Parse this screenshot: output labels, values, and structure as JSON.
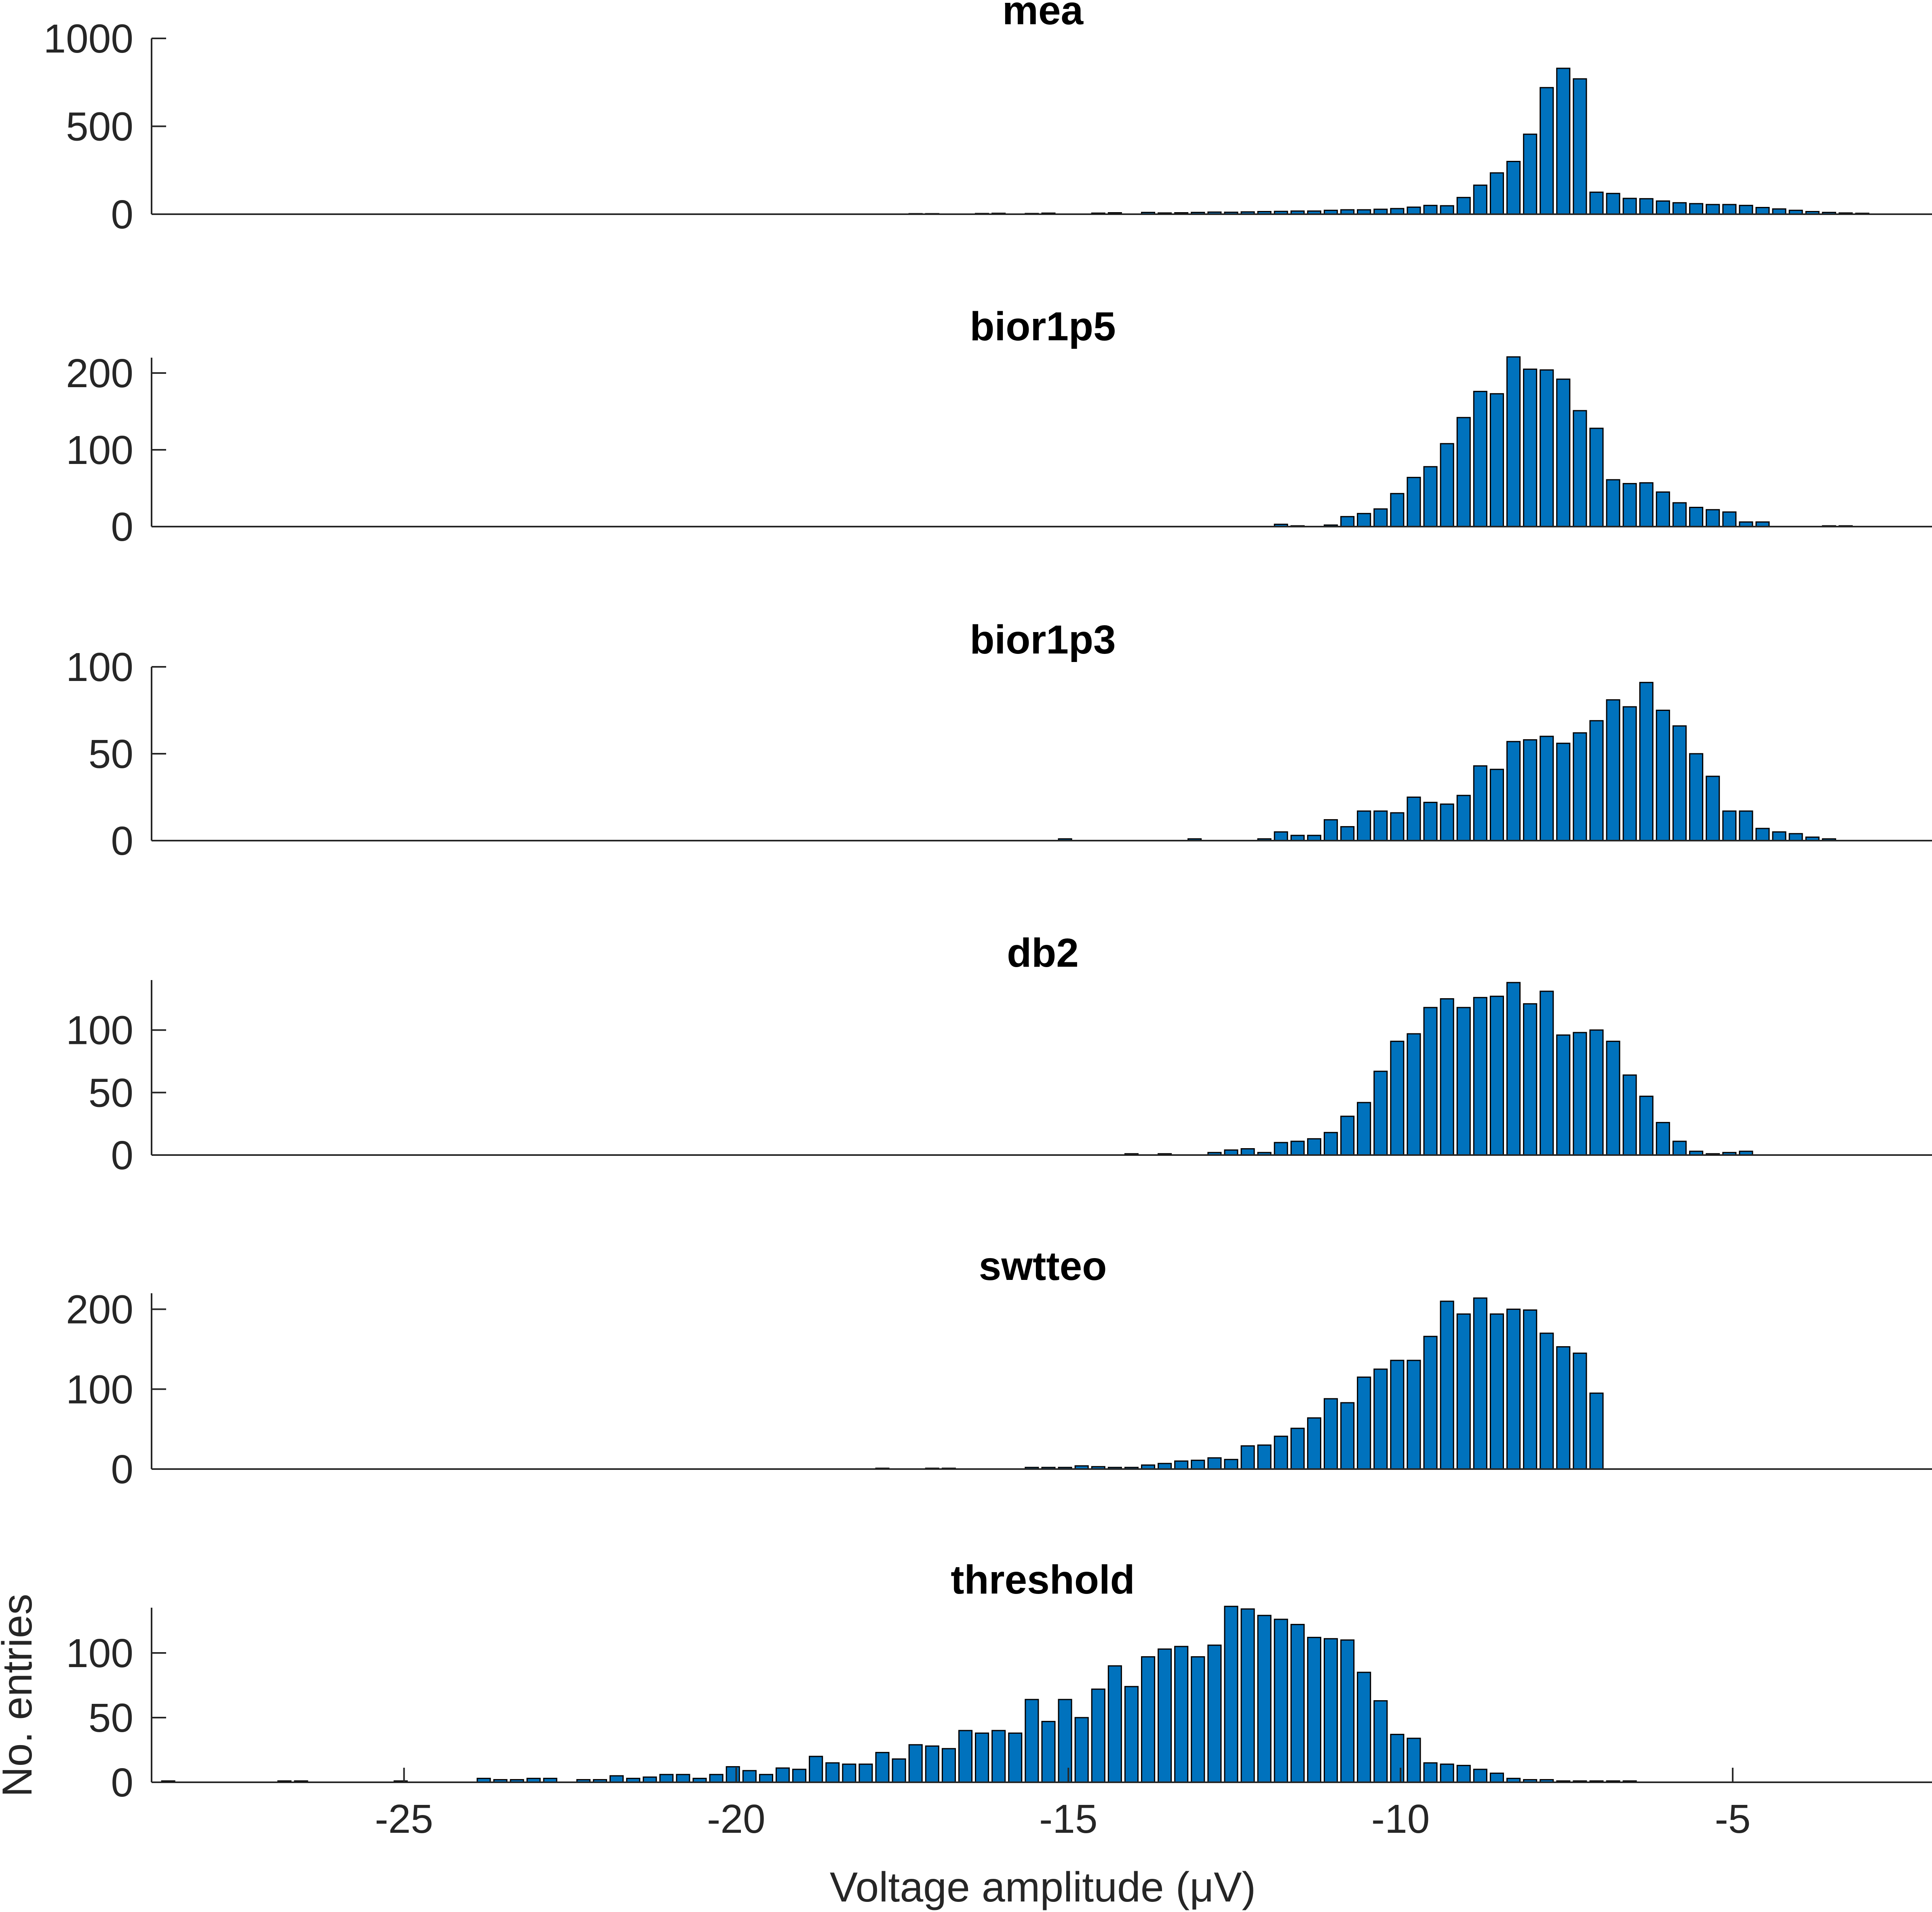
{
  "chart_data": {
    "type": "bar",
    "layout": "six vertically stacked histograms sharing one x axis",
    "xlabel": "Voltage amplitude (μV)",
    "ylabel": "No. entries",
    "xlim": [
      -28.8,
      -2.0
    ],
    "xticks": [
      -25,
      -20,
      -15,
      -10,
      -5
    ],
    "xtick_labels": [
      "-25",
      "-20",
      "-15",
      "-10",
      "-5"
    ],
    "bar_color": "#0072BD",
    "bar_edge_color": "#000000",
    "grid": false,
    "legend": "none",
    "panels": [
      {
        "title": "mea",
        "ylim": [
          0,
          1000
        ],
        "yticks": [
          0,
          500,
          1000
        ],
        "ytick_labels": [
          "0",
          "500",
          "1000"
        ],
        "x": [
          -17.3,
          -17.05,
          -16.3,
          -16.05,
          -15.55,
          -15.3,
          -14.55,
          -14.3,
          -13.8,
          -13.55,
          -13.3,
          -13.05,
          -12.8,
          -12.55,
          -12.3,
          -12.05,
          -11.8,
          -11.55,
          -11.3,
          -11.05,
          -10.8,
          -10.55,
          -10.3,
          -10.05,
          -9.8,
          -9.55,
          -9.3,
          -9.05,
          -8.8,
          -8.55,
          -8.3,
          -8.05,
          -7.8,
          -7.55,
          -7.3,
          -7.05,
          -6.8,
          -6.55,
          -6.3,
          -6.05,
          -5.8,
          -5.55,
          -5.3,
          -5.05,
          -4.8,
          -4.55,
          -4.3,
          -4.05,
          -3.8,
          -3.55,
          -3.3,
          -3.05
        ],
        "values": [
          3,
          3,
          4,
          5,
          4,
          6,
          6,
          8,
          10,
          7,
          8,
          10,
          12,
          11,
          13,
          15,
          16,
          18,
          18,
          22,
          25,
          25,
          28,
          32,
          40,
          50,
          48,
          95,
          165,
          235,
          300,
          455,
          720,
          830,
          770,
          125,
          118,
          90,
          88,
          75,
          65,
          60,
          55,
          55,
          50,
          38,
          30,
          22,
          15,
          10,
          7,
          5
        ]
      },
      {
        "title": "bior1p5",
        "ylim": [
          0,
          220
        ],
        "yticks": [
          0,
          100,
          200
        ],
        "ytick_labels": [
          "0",
          "100",
          "200"
        ],
        "x": [
          -11.8,
          -11.55,
          -11.3,
          -11.05,
          -10.8,
          -10.55,
          -10.3,
          -10.05,
          -9.8,
          -9.55,
          -9.3,
          -9.05,
          -8.8,
          -8.55,
          -8.3,
          -8.05,
          -7.8,
          -7.55,
          -7.3,
          -7.05,
          -6.8,
          -6.55,
          -6.3,
          -6.05,
          -5.8,
          -5.55,
          -5.3,
          -5.05,
          -4.8,
          -4.55,
          -4.3,
          -4.05,
          -3.8,
          -3.55,
          -3.3,
          -3.05
        ],
        "values": [
          3,
          1,
          0,
          2,
          13,
          17,
          23,
          43,
          64,
          78,
          108,
          142,
          176,
          173,
          221,
          205,
          204,
          192,
          151,
          128,
          61,
          56,
          57,
          45,
          31,
          25,
          22,
          19,
          6,
          6,
          0,
          0,
          0,
          1,
          1,
          0
        ]
      },
      {
        "title": "bior1p3",
        "ylim": [
          0,
          100
        ],
        "yticks": [
          0,
          50,
          100
        ],
        "ytick_labels": [
          "0",
          "50",
          "100"
        ],
        "x": [
          -15.05,
          -13.1,
          -12.05,
          -11.8,
          -11.55,
          -11.3,
          -11.05,
          -10.8,
          -10.55,
          -10.3,
          -10.05,
          -9.8,
          -9.55,
          -9.3,
          -9.05,
          -8.8,
          -8.55,
          -8.3,
          -8.05,
          -7.8,
          -7.55,
          -7.3,
          -7.05,
          -6.8,
          -6.55,
          -6.3,
          -6.05,
          -5.8,
          -5.55,
          -5.3,
          -5.05,
          -4.8,
          -4.55,
          -4.3,
          -4.05,
          -3.8,
          -3.55,
          -3.3,
          -3.05
        ],
        "values": [
          1,
          1,
          1,
          5,
          3,
          3,
          12,
          8,
          17,
          17,
          16,
          25,
          22,
          21,
          26,
          43,
          41,
          57,
          58,
          60,
          56,
          62,
          69,
          81,
          77,
          91,
          75,
          66,
          50,
          37,
          17,
          17,
          7,
          5,
          4,
          2,
          1,
          0,
          0
        ]
      },
      {
        "title": "db2",
        "ylim": [
          0,
          140
        ],
        "yticks": [
          0,
          50,
          100
        ],
        "ytick_labels": [
          "0",
          "50",
          "100"
        ],
        "x": [
          -14.05,
          -13.55,
          -13.05,
          -12.8,
          -12.55,
          -12.3,
          -12.05,
          -11.8,
          -11.55,
          -11.3,
          -11.05,
          -10.8,
          -10.55,
          -10.3,
          -10.05,
          -9.8,
          -9.55,
          -9.3,
          -9.05,
          -8.8,
          -8.55,
          -8.3,
          -8.05,
          -7.8,
          -7.55,
          -7.3,
          -7.05,
          -6.8,
          -6.55,
          -6.3,
          -6.05,
          -5.8,
          -5.55,
          -5.3,
          -5.05,
          -4.8,
          -4.55,
          -4.3,
          -4.05
        ],
        "values": [
          1,
          1,
          0,
          2,
          4,
          5,
          2,
          10,
          11,
          13,
          18,
          31,
          42,
          67,
          91,
          97,
          118,
          125,
          118,
          126,
          127,
          138,
          121,
          131,
          96,
          98,
          100,
          91,
          64,
          47,
          26,
          11,
          3,
          1,
          2,
          3,
          0,
          0,
          0
        ]
      },
      {
        "title": "swtteo",
        "ylim": [
          0,
          220
        ],
        "yticks": [
          0,
          100,
          200
        ],
        "ytick_labels": [
          "0",
          "100",
          "200"
        ],
        "x": [
          -17.8,
          -17.05,
          -16.8,
          -15.55,
          -15.3,
          -15.05,
          -14.8,
          -14.55,
          -14.3,
          -14.05,
          -13.8,
          -13.55,
          -13.3,
          -13.05,
          -12.8,
          -12.55,
          -12.3,
          -12.05,
          -11.8,
          -11.55,
          -11.3,
          -11.05,
          -10.8,
          -10.55,
          -10.3,
          -10.05,
          -9.8,
          -9.55,
          -9.3,
          -9.05,
          -8.8,
          -8.55,
          -8.3,
          -8.05,
          -7.8,
          -7.55,
          -7.3,
          -7.05,
          -6.8
        ],
        "values": [
          1,
          1,
          1,
          2,
          2,
          2,
          4,
          3,
          2,
          2,
          5,
          7,
          10,
          11,
          14,
          12,
          29,
          30,
          41,
          51,
          64,
          88,
          83,
          115,
          125,
          136,
          136,
          166,
          210,
          194,
          214,
          194,
          200,
          199,
          170,
          153,
          145,
          95,
          0
        ]
      },
      {
        "title": "threshold",
        "ylim": [
          0,
          135
        ],
        "yticks": [
          0,
          50,
          100
        ],
        "ytick_labels": [
          "0",
          "50",
          "100"
        ],
        "x": [
          -28.55,
          -26.8,
          -26.55,
          -25.05,
          -23.8,
          -23.55,
          -23.3,
          -23.05,
          -22.8,
          -22.3,
          -22.05,
          -21.8,
          -21.55,
          -21.3,
          -21.05,
          -20.8,
          -20.55,
          -20.3,
          -20.05,
          -19.8,
          -19.55,
          -19.3,
          -19.05,
          -18.8,
          -18.55,
          -18.3,
          -18.05,
          -17.8,
          -17.55,
          -17.3,
          -17.05,
          -16.8,
          -16.55,
          -16.3,
          -16.05,
          -15.8,
          -15.55,
          -15.3,
          -15.05,
          -14.8,
          -14.55,
          -14.3,
          -14.05,
          -13.8,
          -13.55,
          -13.3,
          -13.05,
          -12.8,
          -12.55,
          -12.3,
          -12.05,
          -11.8,
          -11.55,
          -11.3,
          -11.05,
          -10.8,
          -10.55,
          -10.3,
          -10.05,
          -9.8,
          -9.55,
          -9.3,
          -9.05,
          -8.8,
          -8.55,
          -8.3,
          -8.05,
          -7.8,
          -7.55,
          -7.3,
          -7.05,
          -6.8,
          -6.55
        ],
        "values": [
          1,
          1,
          1,
          1,
          3,
          2,
          2,
          3,
          3,
          2,
          2,
          5,
          3,
          4,
          6,
          6,
          3,
          6,
          12,
          9,
          6,
          11,
          10,
          20,
          15,
          14,
          14,
          23,
          18,
          29,
          28,
          26,
          40,
          38,
          40,
          38,
          64,
          47,
          64,
          50,
          72,
          90,
          74,
          97,
          103,
          105,
          97,
          106,
          136,
          134,
          129,
          126,
          122,
          112,
          111,
          110,
          85,
          63,
          37,
          34,
          15,
          14,
          13,
          10,
          7,
          3,
          2,
          2,
          1,
          1,
          1,
          1,
          1
        ]
      }
    ]
  }
}
